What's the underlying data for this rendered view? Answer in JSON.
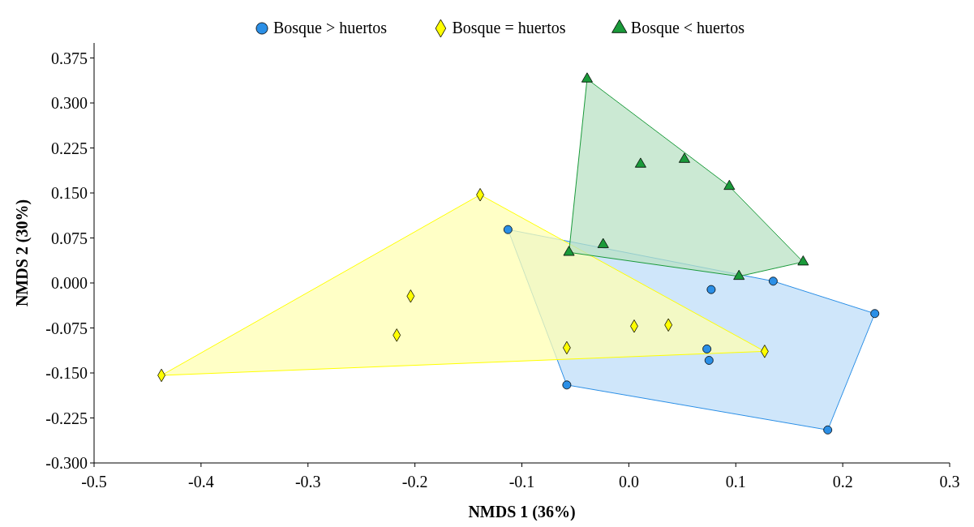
{
  "chart_data": {
    "type": "scatter",
    "xlabel": "NMDS 1 (36%)",
    "ylabel": "NMDS 2 (30%)",
    "xlim": [
      -0.5,
      0.3
    ],
    "ylim": [
      -0.3,
      0.4
    ],
    "xticks": [
      -0.5,
      -0.4,
      -0.3,
      -0.2,
      -0.1,
      {
        "value": 0,
        "label": "0.0"
      },
      0.1,
      0.2,
      0.3
    ],
    "yticks": [
      {
        "value": -0.3,
        "label": "-0.300"
      },
      {
        "value": -0.225,
        "label": "-0.225"
      },
      {
        "value": -0.15,
        "label": "-0.150"
      },
      {
        "value": -0.075,
        "label": "-0.075"
      },
      {
        "value": 0,
        "label": "0.000"
      },
      {
        "value": 0.075,
        "label": "0.075"
      },
      {
        "value": 0.15,
        "label": "0.150"
      },
      {
        "value": 0.225,
        "label": "0.225"
      },
      {
        "value": 0.3,
        "label": "0.300"
      },
      {
        "value": 0.375,
        "label": "0.375"
      }
    ],
    "grid": false,
    "legend": "top",
    "series": [
      {
        "name": "Bosque > huertos",
        "color": "#2b8fe6",
        "marker": "circle",
        "x": [
          -0.113,
          0.077,
          0.135,
          0.23,
          0.073,
          0.075,
          -0.058,
          0.186
        ],
        "values": [
          0.089,
          -0.011,
          0.003,
          -0.051,
          -0.11,
          -0.129,
          -0.17,
          -0.245
        ]
      },
      {
        "name": "Bosque = huertos",
        "color": "#ffff00",
        "marker": "diamond",
        "x": [
          -0.139,
          -0.204,
          -0.217,
          -0.437,
          -0.058,
          0.005,
          0.037,
          0.127
        ],
        "values": [
          0.147,
          -0.022,
          -0.087,
          -0.154,
          -0.108,
          -0.072,
          -0.07,
          -0.114
        ]
      },
      {
        "name": "Bosque < huertos",
        "color": "#1a9a3a",
        "marker": "triangle",
        "x": [
          -0.039,
          0.011,
          0.052,
          0.094,
          -0.024,
          -0.056,
          0.103,
          0.163
        ],
        "values": [
          0.34,
          0.198,
          0.206,
          0.161,
          0.064,
          0.051,
          0.011,
          0.035
        ]
      }
    ]
  }
}
